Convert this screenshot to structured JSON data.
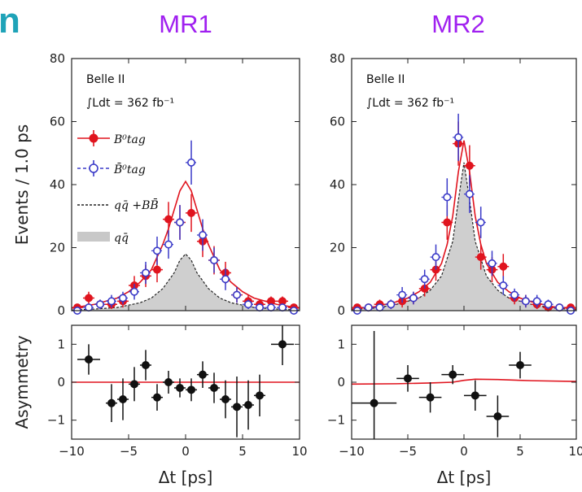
{
  "header": {
    "cut_title": "n"
  },
  "panels": [
    {
      "title": "MR1",
      "experiment": "Belle II",
      "lumi_text": "∫Ldt = 362 fb⁻¹"
    },
    {
      "title": "MR2",
      "experiment": "Belle II",
      "lumi_text": "∫Ldt = 362 fb⁻¹"
    }
  ],
  "legend": {
    "entries": [
      {
        "label": "B⁰tag",
        "color": "#e0141e"
      },
      {
        "label": "B̄⁰tag",
        "color": "#3a3ac8"
      },
      {
        "label": "qq̄ +BB̄",
        "color": "#222222"
      },
      {
        "label": "qq̄",
        "color": "#c8c8c8"
      }
    ]
  },
  "chart_data": [
    {
      "type": "scatter",
      "panel": "MR1 top",
      "ylabel": "Events / 1.0 ps",
      "xlim": [
        -10,
        10
      ],
      "ylim": [
        0,
        80
      ],
      "xticks": [
        -10,
        -5,
        0,
        5,
        10
      ],
      "yticks": [
        0,
        20,
        40,
        60,
        80
      ],
      "series": [
        {
          "name": "B⁰tag",
          "color": "#e0141e",
          "x": [
            -9.5,
            -8.5,
            -7.5,
            -6.5,
            -5.5,
            -4.5,
            -3.5,
            -2.5,
            -1.5,
            -0.5,
            0.5,
            1.5,
            2.5,
            3.5,
            4.5,
            5.5,
            6.5,
            7.5,
            8.5,
            9.5
          ],
          "y": [
            1,
            4,
            2,
            2,
            3,
            8,
            11,
            13,
            29,
            28,
            31,
            22,
            16,
            12,
            5,
            3,
            2,
            3,
            3,
            1
          ],
          "yerr": [
            1,
            2,
            1.5,
            1.5,
            2,
            3,
            3.5,
            4,
            5.5,
            5.5,
            6,
            5,
            4.5,
            3.5,
            2.5,
            2,
            1.5,
            1.5,
            1.5,
            1
          ]
        },
        {
          "name": "B̄⁰tag",
          "color": "#3a3ac8",
          "x": [
            -9.5,
            -8.5,
            -7.5,
            -6.5,
            -5.5,
            -4.5,
            -3.5,
            -2.5,
            -1.5,
            -0.5,
            0.5,
            1.5,
            2.5,
            3.5,
            4.5,
            5.5,
            6.5,
            7.5,
            8.5,
            9.5
          ],
          "y": [
            0,
            1,
            2,
            3,
            4,
            6,
            12,
            19,
            21,
            28,
            47,
            24,
            16,
            10,
            5,
            2,
            1,
            1,
            1,
            0
          ],
          "yerr": [
            1,
            1,
            1.5,
            2,
            2,
            2.5,
            3.5,
            4.5,
            4.5,
            5.5,
            7,
            5,
            4,
            3.5,
            2.5,
            1.5,
            1,
            1,
            1,
            1
          ]
        },
        {
          "name": "qq̄ +BB̄",
          "style": "dashed-line",
          "x": [
            -10,
            -8,
            -6,
            -4,
            -3,
            -2,
            -1,
            -0.5,
            0,
            0.5,
            1,
            2,
            3,
            4,
            6,
            8,
            10
          ],
          "y": [
            0.2,
            0.5,
            1,
            2.5,
            4,
            7,
            12,
            16,
            18,
            16,
            12,
            7,
            4,
            2.5,
            1,
            0.5,
            0.2
          ]
        },
        {
          "name": "qq̄",
          "style": "filled-area",
          "x": [
            -10,
            -8,
            -6,
            -4,
            -3,
            -2,
            -1,
            -0.5,
            0,
            0.5,
            1,
            2,
            3,
            4,
            6,
            8,
            10
          ],
          "y": [
            0.2,
            0.5,
            1,
            2.5,
            4,
            7,
            12,
            16,
            18,
            16,
            12,
            7,
            4,
            2.5,
            1,
            0.5,
            0.2
          ]
        },
        {
          "name": "fit B⁰tag",
          "style": "line",
          "color": "#e0141e",
          "x": [
            -10,
            -8,
            -6,
            -5,
            -4,
            -3,
            -2,
            -1.5,
            -1,
            -0.5,
            0,
            0.5,
            1,
            1.5,
            2,
            3,
            4,
            5,
            6,
            8,
            10
          ],
          "y": [
            0.8,
            2,
            4,
            6,
            9,
            13,
            21,
            26,
            32,
            38,
            41,
            38,
            32,
            26,
            21,
            13,
            9,
            6,
            4,
            2,
            0.8
          ]
        }
      ]
    },
    {
      "type": "scatter",
      "panel": "MR1 bottom",
      "xlabel": "Δt [ps]",
      "ylabel": "Asymmetry",
      "xlim": [
        -10,
        10
      ],
      "ylim": [
        -1.5,
        1.5
      ],
      "xticks": [
        -10,
        -5,
        0,
        5,
        10
      ],
      "yticks": [
        -1,
        0,
        1
      ],
      "series": [
        {
          "name": "asymmetry",
          "x": [
            -8.5,
            -6.5,
            -5.5,
            -4.5,
            -3.5,
            -2.5,
            -1.5,
            -0.5,
            0.5,
            1.5,
            2.5,
            3.5,
            4.5,
            5.5,
            6.5,
            8.5
          ],
          "y": [
            0.6,
            -0.55,
            -0.45,
            -0.05,
            0.45,
            -0.4,
            0.0,
            -0.15,
            -0.2,
            0.2,
            -0.15,
            -0.45,
            -0.65,
            -0.6,
            -0.35,
            1.0
          ],
          "yerr": [
            0.4,
            0.5,
            0.55,
            0.45,
            0.4,
            0.35,
            0.3,
            0.25,
            0.3,
            0.35,
            0.4,
            0.5,
            0.8,
            0.65,
            0.55,
            0.55
          ],
          "xerr": [
            1,
            0.5,
            0.5,
            0.5,
            0.5,
            0.5,
            0.5,
            0.5,
            0.5,
            0.5,
            0.5,
            0.5,
            0.5,
            0.5,
            0.5,
            1
          ]
        },
        {
          "name": "fit",
          "style": "line",
          "color": "#e0141e",
          "x": [
            -10,
            -5,
            0,
            5,
            10
          ],
          "y": [
            0,
            0,
            0,
            0,
            0
          ]
        }
      ]
    },
    {
      "type": "scatter",
      "panel": "MR2 top",
      "xlim": [
        -10,
        10
      ],
      "ylim": [
        0,
        80
      ],
      "xticks": [
        -10,
        -5,
        0,
        5,
        10
      ],
      "yticks": [
        0,
        20,
        40,
        60,
        80
      ],
      "series": [
        {
          "name": "B⁰tag",
          "color": "#e0141e",
          "x": [
            -9.5,
            -8.5,
            -7.5,
            -6.5,
            -5.5,
            -4.5,
            -3.5,
            -2.5,
            -1.5,
            -0.5,
            0.5,
            1.5,
            2.5,
            3.5,
            4.5,
            5.5,
            6.5,
            7.5,
            8.5,
            9.5
          ],
          "y": [
            1,
            1,
            2,
            2,
            3,
            4,
            7,
            13,
            28,
            53,
            46,
            17,
            13,
            14,
            4,
            3,
            2,
            1,
            1,
            1
          ],
          "yerr": [
            1,
            1,
            1.5,
            1.5,
            2,
            2,
            2.5,
            3.5,
            5.5,
            7,
            6.5,
            4,
            4,
            4,
            2,
            2,
            1.5,
            1,
            1,
            1
          ]
        },
        {
          "name": "B̄⁰tag",
          "color": "#3a3ac8",
          "x": [
            -9.5,
            -8.5,
            -7.5,
            -6.5,
            -5.5,
            -4.5,
            -3.5,
            -2.5,
            -1.5,
            -0.5,
            0.5,
            1.5,
            2.5,
            3.5,
            4.5,
            5.5,
            6.5,
            7.5,
            8.5,
            9.5
          ],
          "y": [
            0,
            1,
            1,
            2,
            5,
            4,
            10,
            17,
            36,
            55,
            37,
            28,
            15,
            8,
            5,
            3,
            3,
            2,
            1,
            0
          ],
          "yerr": [
            1,
            1,
            1,
            1.5,
            2.5,
            2,
            3,
            4,
            6,
            7.5,
            6,
            5,
            4,
            3,
            2,
            2,
            2,
            1.5,
            1,
            1
          ]
        },
        {
          "name": "qq̄ +BB̄",
          "style": "dashed-line",
          "x": [
            -10,
            -8,
            -6,
            -4,
            -3,
            -2,
            -1,
            -0.5,
            0,
            0.5,
            1,
            2,
            3,
            4,
            6,
            8,
            10
          ],
          "y": [
            0.3,
            0.8,
            2,
            4,
            6.5,
            11,
            22,
            35,
            47,
            35,
            22,
            11,
            6.5,
            4,
            2,
            0.8,
            0.3
          ]
        },
        {
          "name": "qq̄",
          "style": "filled-area",
          "x": [
            -10,
            -8,
            -6,
            -4,
            -3,
            -2,
            -1,
            -0.5,
            0,
            0.5,
            1,
            2,
            3,
            4,
            6,
            8,
            10
          ],
          "y": [
            0.3,
            0.8,
            2,
            4,
            6.5,
            11,
            22,
            35,
            47,
            35,
            22,
            11,
            6.5,
            4,
            2,
            0.8,
            0.3
          ]
        },
        {
          "name": "fit B⁰tag",
          "style": "line",
          "color": "#e0141e",
          "x": [
            -10,
            -8,
            -6,
            -5,
            -4,
            -3,
            -2,
            -1.5,
            -1,
            -0.5,
            0,
            0.5,
            1,
            1.5,
            2,
            3,
            4,
            5,
            6,
            8,
            10
          ],
          "y": [
            0.5,
            1.2,
            2.8,
            4,
            6,
            9,
            15,
            21,
            30,
            44,
            54,
            44,
            30,
            21,
            15,
            9,
            6,
            4,
            2.8,
            1.2,
            0.5
          ]
        }
      ]
    },
    {
      "type": "scatter",
      "panel": "MR2 bottom",
      "xlabel": "Δt [ps]",
      "xlim": [
        -10,
        10
      ],
      "ylim": [
        -1.5,
        1.5
      ],
      "xticks": [
        -10,
        -5,
        0,
        5,
        10
      ],
      "yticks": [
        -1,
        0,
        1
      ],
      "series": [
        {
          "name": "asymmetry",
          "x": [
            -8,
            -5,
            -3,
            -1,
            1,
            3,
            5
          ],
          "y": [
            -0.55,
            0.1,
            -0.4,
            0.2,
            -0.35,
            -0.9,
            0.45
          ],
          "yerr": [
            1.9,
            0.35,
            0.4,
            0.25,
            0.4,
            0.55,
            0.35
          ],
          "xerr": [
            2,
            1,
            1,
            1,
            1,
            1,
            1
          ]
        },
        {
          "name": "fit",
          "style": "line",
          "color": "#e0141e",
          "x": [
            -10,
            -6,
            -3,
            -1,
            0,
            1,
            3,
            6,
            10
          ],
          "y": [
            -0.05,
            -0.04,
            -0.02,
            0.0,
            0.05,
            0.08,
            0.07,
            0.04,
            0.02
          ]
        }
      ]
    }
  ]
}
